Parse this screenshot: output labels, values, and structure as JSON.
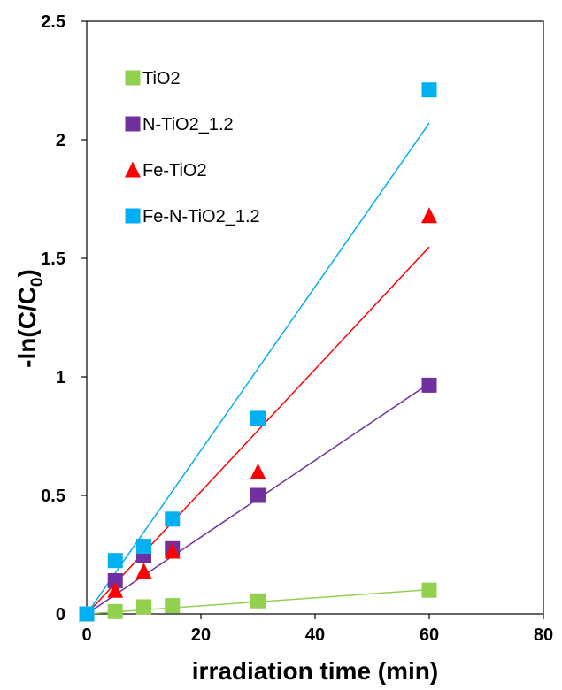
{
  "chart_data": {
    "type": "scatter",
    "xlabel": "irradiation time (min)",
    "ylabel_main": "-ln(C/C",
    "ylabel_sub": "0",
    "ylabel_end": ")",
    "xlim": [
      0,
      80
    ],
    "ylim": [
      0,
      2.5
    ],
    "x_ticks": [
      {
        "value": 0,
        "label": "0"
      },
      {
        "value": 20,
        "label": "20"
      },
      {
        "value": 40,
        "label": "40"
      },
      {
        "value": 60,
        "label": "60"
      },
      {
        "value": 80,
        "label": "80"
      }
    ],
    "y_ticks": [
      {
        "value": 0,
        "label": "0"
      },
      {
        "value": 0.5,
        "label": "0.5"
      },
      {
        "value": 1,
        "label": "1"
      },
      {
        "value": 1.5,
        "label": "1.5"
      },
      {
        "value": 2,
        "label": "2"
      },
      {
        "value": 2.5,
        "label": "2.5"
      }
    ],
    "grid": false,
    "legend_position": "top-left",
    "series": [
      {
        "name": "TiO2",
        "marker": "square",
        "color": "#92D050",
        "line_color": "#92D050",
        "x": [
          0,
          5,
          10,
          15,
          30,
          60
        ],
        "y": [
          0,
          0.01,
          0.03,
          0.035,
          0.055,
          0.1
        ],
        "trend_slope": 0.0017
      },
      {
        "name": "N-TiO2_1.2",
        "marker": "square",
        "color": "#7030A0",
        "line_color": "#7030A0",
        "x": [
          0,
          5,
          10,
          15,
          30,
          60
        ],
        "y": [
          0,
          0.14,
          0.245,
          0.275,
          0.5,
          0.965
        ],
        "trend_slope": 0.0162
      },
      {
        "name": "Fe-TiO2",
        "marker": "triangle",
        "color": "#FF0000",
        "line_color": "#FF0000",
        "x": [
          0,
          5,
          10,
          15,
          30,
          60
        ],
        "y": [
          0,
          0.1,
          0.18,
          0.265,
          0.6,
          1.68
        ],
        "trend_slope": 0.0258
      },
      {
        "name": "Fe-N-TiO2_1.2",
        "marker": "square",
        "color": "#00B0F0",
        "line_color": "#00B0F0",
        "x": [
          0,
          5,
          10,
          15,
          30,
          60
        ],
        "y": [
          0,
          0.225,
          0.285,
          0.4,
          0.825,
          2.21
        ],
        "trend_slope": 0.0345
      }
    ]
  }
}
